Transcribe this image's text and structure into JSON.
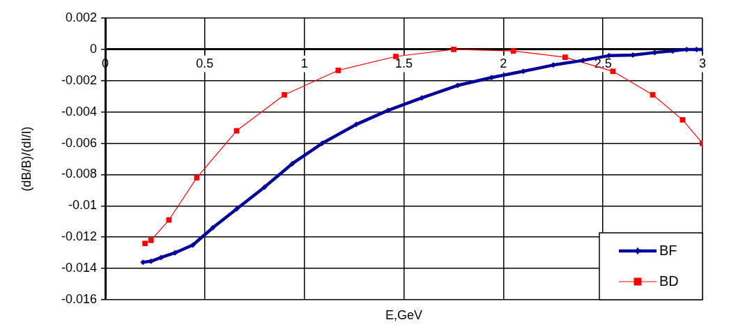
{
  "chart_data": {
    "type": "line",
    "xlabel": "E,GeV",
    "ylabel": "(dB/B)/(dI/I)",
    "xlim": [
      0,
      3
    ],
    "xticks": [
      0,
      0.5,
      1,
      1.5,
      2,
      2.5,
      3
    ],
    "ylim": [
      -0.016,
      0.002
    ],
    "yticks": [
      -0.016,
      -0.014,
      -0.012,
      -0.01,
      -0.008,
      -0.006,
      -0.004,
      -0.002,
      0,
      0.002
    ],
    "grid": true,
    "legend": "bottom right",
    "series": [
      {
        "name": "BF",
        "color": "#000099",
        "marker": "diamond",
        "x": [
          0.19,
          0.23,
          0.28,
          0.35,
          0.44,
          0.54,
          0.66,
          0.8,
          0.94,
          1.09,
          1.26,
          1.42,
          1.59,
          1.77,
          1.94,
          2.1,
          2.25,
          2.4,
          2.53,
          2.65,
          2.76,
          2.85,
          2.92,
          2.97,
          3.0
        ],
        "values": [
          -0.0136,
          -0.01354,
          -0.0133,
          -0.013,
          -0.0125,
          -0.0114,
          -0.0102,
          -0.0088,
          -0.0073,
          -0.006,
          -0.0048,
          -0.0039,
          -0.0031,
          -0.0023,
          -0.0018,
          -0.0014,
          -0.001,
          -0.0007,
          -0.0004,
          -0.00036,
          -0.0002,
          -0.0001,
          0,
          0,
          0
        ]
      },
      {
        "name": "BD",
        "color": "#ff0000",
        "marker": "square",
        "x": [
          0.2,
          0.23,
          0.32,
          0.46,
          0.66,
          0.9,
          1.17,
          1.46,
          1.75,
          2.05,
          2.31,
          2.55,
          2.75,
          2.9,
          3.0
        ],
        "values": [
          -0.0124,
          -0.0122,
          -0.0109,
          -0.0082,
          -0.0052,
          -0.0029,
          -0.00134,
          -0.00045,
          0,
          -0.0001,
          -0.0005,
          -0.0014,
          -0.0029,
          -0.0045,
          -0.006
        ]
      }
    ]
  }
}
